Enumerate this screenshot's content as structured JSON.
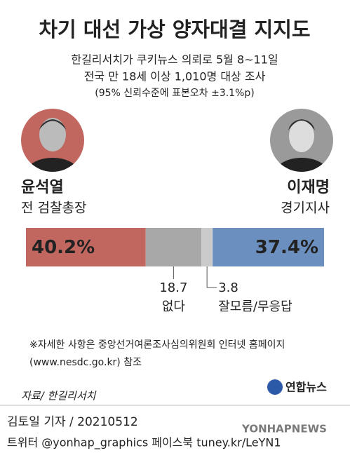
{
  "chart_data": {
    "type": "stacked-bar",
    "title": "차기 대선 가상 양자대결 지지도",
    "subtitle": [
      "한길리서치가 쿠키뉴스 의뢰로 5월 8~11일",
      "전국 만 18세 이상 1,010명 대상 조사",
      "(95% 신뢰수준에 표본오차 ±3.1%p)"
    ],
    "categories": [
      "윤석열",
      "없다",
      "잘모름/무응답",
      "이재명"
    ],
    "category_notes": [
      "전 검찰총장",
      null,
      null,
      "경기지사"
    ],
    "values": [
      40.2,
      18.7,
      3.8,
      37.4
    ],
    "value_labels": [
      "40.2%",
      "18.7",
      "3.8",
      "37.4%"
    ],
    "colors": [
      "#c1675f",
      "#a8a8a8",
      "#cbcbcb",
      "#6b8fbf"
    ],
    "note": [
      "※자세한 사항은 중앙선거여론조사심의위원회 인터넷 홈페이지",
      "(www.nesdc.go.kr) 참조"
    ],
    "source": "자료/ 한길리서치",
    "logo": "연합뉴스",
    "byline": "김토일 기자 / 20210512",
    "social": "트위터 @yonhap_graphics  페이스북 tuney.kr/LeYN1",
    "watermark": "YONHAPNEWS"
  }
}
